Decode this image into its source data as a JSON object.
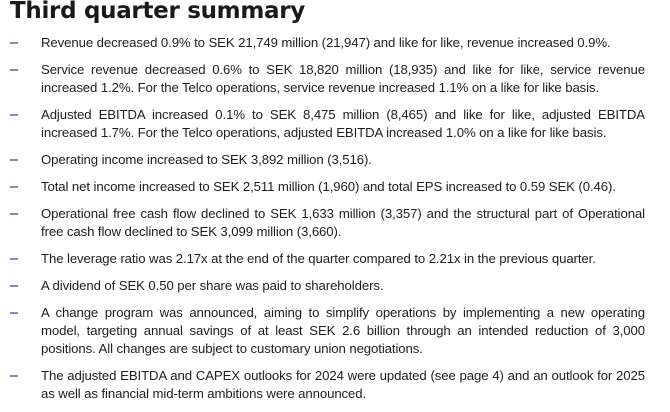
{
  "title": "Third quarter summary",
  "accent_color": "#9a7fb0",
  "items": [
    {
      "text": "Revenue decreased 0.9% to SEK 21,749 million (21,947) and like for like, revenue increased 0.9%."
    },
    {
      "text": "Service revenue decreased 0.6% to SEK 18,820 million (18,935) and like for like, service revenue increased 1.2%. For the Telco operations, service revenue increased 1.1% on a like for like basis."
    },
    {
      "text": "Adjusted EBITDA increased 0.1% to SEK 8,475 million (8,465) and like for like, adjusted EBITDA increased 1.7%. For the Telco operations, adjusted EBITDA increased 1.0% on a like for like basis."
    },
    {
      "text": "Operating income increased to SEK 3,892 million (3,516)."
    },
    {
      "text": "Total net income increased to SEK 2,511 million (1,960) and total EPS increased to 0.59 SEK (0.46)."
    },
    {
      "text": "Operational free cash flow declined to SEK 1,633 million (3,357) and the structural part of Operational free cash flow declined to SEK 3,099 million (3,660)."
    },
    {
      "text": "The leverage ratio was 2.17x at the end of the quarter compared to 2.21x in the previous quarter."
    },
    {
      "text": "A dividend of SEK 0.50 per share was paid to shareholders."
    },
    {
      "text": "A change program was announced, aiming to simplify operations by implementing a new operating model, targeting annual savings of at least SEK 2.6 billion through an intended reduction of 3,000 positions. All changes are subject to customary union negotiations."
    },
    {
      "text": "The adjusted EBITDA and CAPEX outlooks for 2024 were updated (see page 4) and an outlook for 2025 as well as financial mid-term ambitions were announced."
    }
  ]
}
